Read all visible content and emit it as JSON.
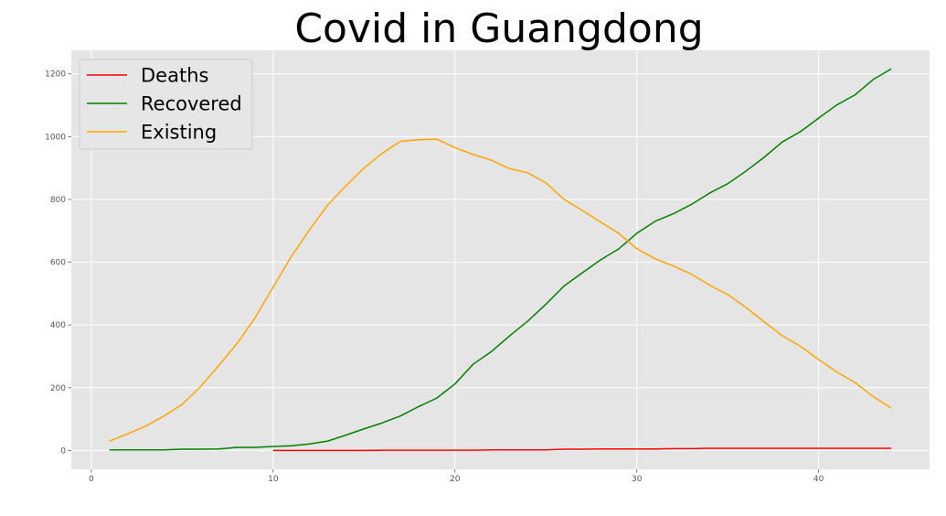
{
  "chart_data": {
    "type": "line",
    "title": "Covid in Guangdong",
    "xlabel": "",
    "ylabel": "",
    "xlim": [
      -1.1,
      46.1
    ],
    "ylim": [
      -60,
      1275
    ],
    "xticks": [
      0,
      10,
      20,
      30,
      40
    ],
    "yticks": [
      0,
      200,
      400,
      600,
      800,
      1000,
      1200
    ],
    "grid": true,
    "legend_position": "top-left",
    "series": [
      {
        "name": "Deaths",
        "color": "#ff0000",
        "x": [
          10,
          11,
          12,
          13,
          14,
          15,
          16,
          17,
          18,
          19,
          20,
          21,
          22,
          23,
          24,
          25,
          26,
          27,
          28,
          29,
          30,
          31,
          32,
          33,
          34,
          35,
          36,
          37,
          38,
          39,
          40,
          41,
          42,
          43,
          44
        ],
        "y": [
          0,
          0,
          0,
          0,
          0,
          0,
          1,
          1,
          1,
          1,
          1,
          1,
          2,
          2,
          2,
          2,
          4,
          4,
          5,
          5,
          5,
          5,
          6,
          6,
          7,
          7,
          7,
          7,
          7,
          7,
          7,
          7,
          7,
          7,
          7
        ]
      },
      {
        "name": "Recovered",
        "color": "#008000",
        "x": [
          1,
          2,
          3,
          4,
          5,
          6,
          7,
          8,
          9,
          10,
          11,
          12,
          13,
          14,
          15,
          16,
          17,
          18,
          19,
          20,
          21,
          22,
          23,
          24,
          25,
          26,
          27,
          28,
          29,
          30,
          31,
          32,
          33,
          34,
          35,
          36,
          37,
          38,
          39,
          40,
          41,
          42,
          43,
          44
        ],
        "y": [
          2,
          2,
          2,
          2,
          4,
          4,
          5,
          10,
          10,
          13,
          15,
          21,
          30,
          49,
          69,
          88,
          110,
          140,
          167,
          212,
          275,
          315,
          365,
          412,
          466,
          524,
          566,
          607,
          642,
          692,
          730,
          754,
          784,
          820,
          850,
          890,
          934,
          983,
          1016,
          1059,
          1101,
          1133,
          1182,
          1216
        ]
      },
      {
        "name": "Existing",
        "color": "#ffa500",
        "x": [
          1,
          2,
          3,
          4,
          5,
          6,
          7,
          8,
          9,
          10,
          11,
          12,
          13,
          14,
          15,
          16,
          17,
          18,
          19,
          20,
          21,
          22,
          23,
          24,
          25,
          26,
          27,
          28,
          29,
          30,
          31,
          32,
          33,
          34,
          35,
          36,
          37,
          38,
          39,
          40,
          41,
          42,
          43,
          44
        ],
        "y": [
          30,
          53,
          78,
          110,
          147,
          203,
          270,
          340,
          422,
          520,
          618,
          703,
          782,
          843,
          900,
          947,
          985,
          990,
          992,
          965,
          943,
          925,
          898,
          885,
          853,
          800,
          765,
          728,
          692,
          643,
          611,
          588,
          562,
          527,
          497,
          456,
          410,
          366,
          332,
          290,
          250,
          217,
          172,
          135
        ]
      }
    ]
  }
}
